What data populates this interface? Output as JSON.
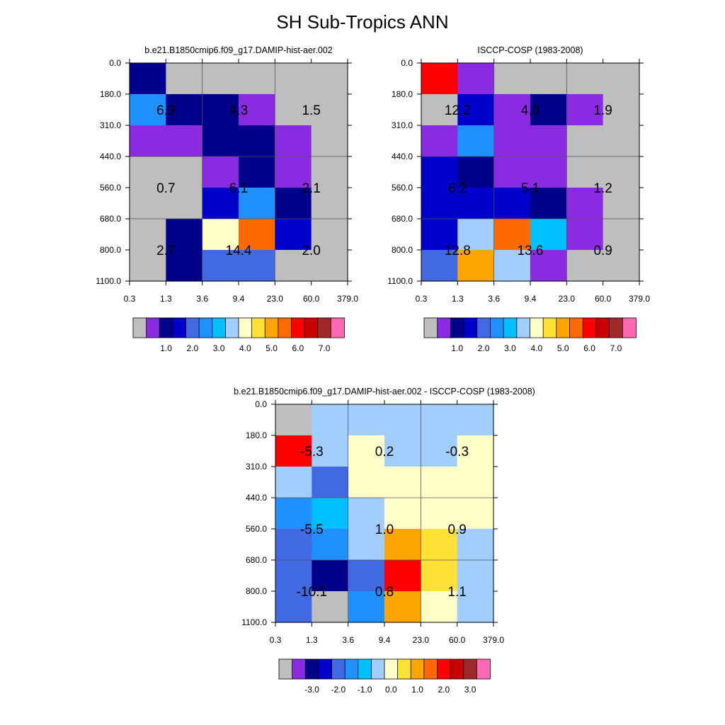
{
  "title": "SH Sub-Tropics ANN",
  "chart_data": [
    {
      "type": "heatmap",
      "title": "b.e21.B1850cmip6.f09_g17.DAMIP-hist-aer.002",
      "x_ticks": [
        "0.3",
        "1.3",
        "3.6",
        "9.4",
        "23.0",
        "60.0",
        "379.0"
      ],
      "y_ticks": [
        "0.0",
        "180.0",
        "310.0",
        "440.0",
        "560.0",
        "680.0",
        "800.0",
        "1100.0"
      ],
      "cell_colors": [
        [
          "#00008B",
          "#BEBEBE",
          "#BEBEBE",
          "#BEBEBE",
          "#BEBEBE",
          "#BEBEBE"
        ],
        [
          "#1E90FF",
          "#00008B",
          "#00008B",
          "#8A2BE2",
          "#BEBEBE",
          "#BEBEBE"
        ],
        [
          "#8A2BE2",
          "#8A2BE2",
          "#00008B",
          "#00008B",
          "#8A2BE2",
          "#BEBEBE"
        ],
        [
          "#BEBEBE",
          "#BEBEBE",
          "#8A2BE2",
          "#00008B",
          "#8A2BE2",
          "#BEBEBE"
        ],
        [
          "#BEBEBE",
          "#BEBEBE",
          "#0000CD",
          "#1E90FF",
          "#00008B",
          "#BEBEBE"
        ],
        [
          "#BEBEBE",
          "#00008B",
          "#FFFFC8",
          "#FF6A00",
          "#0000CD",
          "#BEBEBE"
        ],
        [
          "#BEBEBE",
          "#00008B",
          "#4169E1",
          "#4169E1",
          "#BEBEBE",
          "#BEBEBE"
        ]
      ],
      "labels": [
        {
          "value": "6.9",
          "col": 1,
          "row": 1.5
        },
        {
          "value": "4.3",
          "col": 3,
          "row": 1.5
        },
        {
          "value": "1.5",
          "col": 5,
          "row": 1.5
        },
        {
          "value": "0.7",
          "col": 1,
          "row": 4
        },
        {
          "value": "6.1",
          "col": 3,
          "row": 4
        },
        {
          "value": "2.1",
          "col": 5,
          "row": 4
        },
        {
          "value": "2.7",
          "col": 1,
          "row": 6
        },
        {
          "value": "14.4",
          "col": 3,
          "row": 6
        },
        {
          "value": "2.0",
          "col": 5,
          "row": 6
        }
      ],
      "colorbar": {
        "colors": [
          "#BEBEBE",
          "#8A2BE2",
          "#00008B",
          "#0000CD",
          "#4169E1",
          "#1E90FF",
          "#00BFFF",
          "#A2CDFF",
          "#FFFFC8",
          "#FFE135",
          "#FFA500",
          "#FF6A00",
          "#FF0000",
          "#C80000",
          "#A02828",
          "#FF69B4"
        ],
        "labels": [
          "1.0",
          "2.0",
          "3.0",
          "4.0",
          "5.0",
          "6.0",
          "7.0"
        ],
        "label_boundaries": [
          2.5,
          4.5,
          6.5,
          8.5,
          10.5,
          12.5,
          14.5
        ]
      }
    },
    {
      "type": "heatmap",
      "title": "ISCCP-COSP (1983-2008)",
      "x_ticks": [
        "0.3",
        "1.3",
        "3.6",
        "9.4",
        "23.0",
        "60.0",
        "379.0"
      ],
      "y_ticks": [
        "0.0",
        "180.0",
        "310.0",
        "440.0",
        "560.0",
        "680.0",
        "800.0",
        "1100.0"
      ],
      "cell_colors": [
        [
          "#FF0000",
          "#8A2BE2",
          "#BEBEBE",
          "#BEBEBE",
          "#BEBEBE",
          "#BEBEBE"
        ],
        [
          "#BEBEBE",
          "#0000CD",
          "#8A2BE2",
          "#00008B",
          "#8A2BE2",
          "#BEBEBE"
        ],
        [
          "#8A2BE2",
          "#1E90FF",
          "#8A2BE2",
          "#8A2BE2",
          "#BEBEBE",
          "#BEBEBE"
        ],
        [
          "#0000CD",
          "#00008B",
          "#8A2BE2",
          "#8A2BE2",
          "#BEBEBE",
          "#BEBEBE"
        ],
        [
          "#0000CD",
          "#0000CD",
          "#0000CD",
          "#00008B",
          "#8A2BE2",
          "#BEBEBE"
        ],
        [
          "#0000CD",
          "#A2CDFF",
          "#FF6A00",
          "#00BFFF",
          "#8A2BE2",
          "#BEBEBE"
        ],
        [
          "#4169E1",
          "#FFA500",
          "#A2CDFF",
          "#8A2BE2",
          "#BEBEBE",
          "#BEBEBE"
        ]
      ],
      "labels": [
        {
          "value": "12.2",
          "col": 1,
          "row": 1.5
        },
        {
          "value": "4.0",
          "col": 3,
          "row": 1.5
        },
        {
          "value": "1.9",
          "col": 5,
          "row": 1.5
        },
        {
          "value": "6.2",
          "col": 1,
          "row": 4
        },
        {
          "value": "5.1",
          "col": 3,
          "row": 4
        },
        {
          "value": "1.2",
          "col": 5,
          "row": 4
        },
        {
          "value": "12.8",
          "col": 1,
          "row": 6
        },
        {
          "value": "13.6",
          "col": 3,
          "row": 6
        },
        {
          "value": "0.9",
          "col": 5,
          "row": 6
        }
      ],
      "colorbar": {
        "colors": [
          "#BEBEBE",
          "#8A2BE2",
          "#00008B",
          "#0000CD",
          "#4169E1",
          "#1E90FF",
          "#00BFFF",
          "#A2CDFF",
          "#FFFFC8",
          "#FFE135",
          "#FFA500",
          "#FF6A00",
          "#FF0000",
          "#C80000",
          "#A02828",
          "#FF69B4"
        ],
        "labels": [
          "1.0",
          "2.0",
          "3.0",
          "4.0",
          "5.0",
          "6.0",
          "7.0"
        ],
        "label_boundaries": [
          2.5,
          4.5,
          6.5,
          8.5,
          10.5,
          12.5,
          14.5
        ]
      }
    },
    {
      "type": "heatmap",
      "title": "b.e21.B1850cmip6.f09_g17.DAMIP-hist-aer.002 - ISCCP-COSP (1983-2008)",
      "x_ticks": [
        "0.3",
        "1.3",
        "3.6",
        "9.4",
        "23.0",
        "60.0",
        "379.0"
      ],
      "y_ticks": [
        "0.0",
        "180.0",
        "310.0",
        "440.0",
        "560.0",
        "680.0",
        "800.0",
        "1100.0"
      ],
      "cell_colors": [
        [
          "#BEBEBE",
          "#A2CDFF",
          "#A2CDFF",
          "#A2CDFF",
          "#A2CDFF",
          "#A2CDFF"
        ],
        [
          "#FF0000",
          "#A2CDFF",
          "#FFFFC8",
          "#A2CDFF",
          "#A2CDFF",
          "#FFFFC8"
        ],
        [
          "#A2CDFF",
          "#4169E1",
          "#FFFFC8",
          "#FFFFC8",
          "#FFFFC8",
          "#FFFFC8"
        ],
        [
          "#1E90FF",
          "#00BFFF",
          "#A2CDFF",
          "#FFFFC8",
          "#FFFFC8",
          "#FFFFC8"
        ],
        [
          "#4169E1",
          "#1E90FF",
          "#A2CDFF",
          "#FFA500",
          "#FFE135",
          "#A2CDFF"
        ],
        [
          "#4169E1",
          "#00008B",
          "#4169E1",
          "#FF0000",
          "#FFE135",
          "#A2CDFF"
        ],
        [
          "#4169E1",
          "#BEBEBE",
          "#1E90FF",
          "#FFA500",
          "#FFFFC8",
          "#A2CDFF"
        ]
      ],
      "labels": [
        {
          "value": "-5.3",
          "col": 1,
          "row": 1.5
        },
        {
          "value": "0.2",
          "col": 3,
          "row": 1.5
        },
        {
          "value": "-0.3",
          "col": 5,
          "row": 1.5
        },
        {
          "value": "-5.5",
          "col": 1,
          "row": 4
        },
        {
          "value": "1.0",
          "col": 3,
          "row": 4
        },
        {
          "value": "0.9",
          "col": 5,
          "row": 4
        },
        {
          "value": "-10.1",
          "col": 1,
          "row": 6
        },
        {
          "value": "0.8",
          "col": 3,
          "row": 6
        },
        {
          "value": "1.1",
          "col": 5,
          "row": 6
        }
      ],
      "colorbar": {
        "colors": [
          "#BEBEBE",
          "#8A2BE2",
          "#00008B",
          "#0000CD",
          "#4169E1",
          "#1E90FF",
          "#00BFFF",
          "#A2CDFF",
          "#FFFFC8",
          "#FFE135",
          "#FFA500",
          "#FF6A00",
          "#FF0000",
          "#C80000",
          "#A02828",
          "#FF69B4"
        ],
        "labels": [
          "-3.0",
          "-2.0",
          "-1.0",
          "0.0",
          "1.0",
          "2.0",
          "3.0"
        ],
        "label_boundaries": [
          2.5,
          4.5,
          6.5,
          8.5,
          10.5,
          12.5,
          14.5
        ]
      }
    }
  ]
}
